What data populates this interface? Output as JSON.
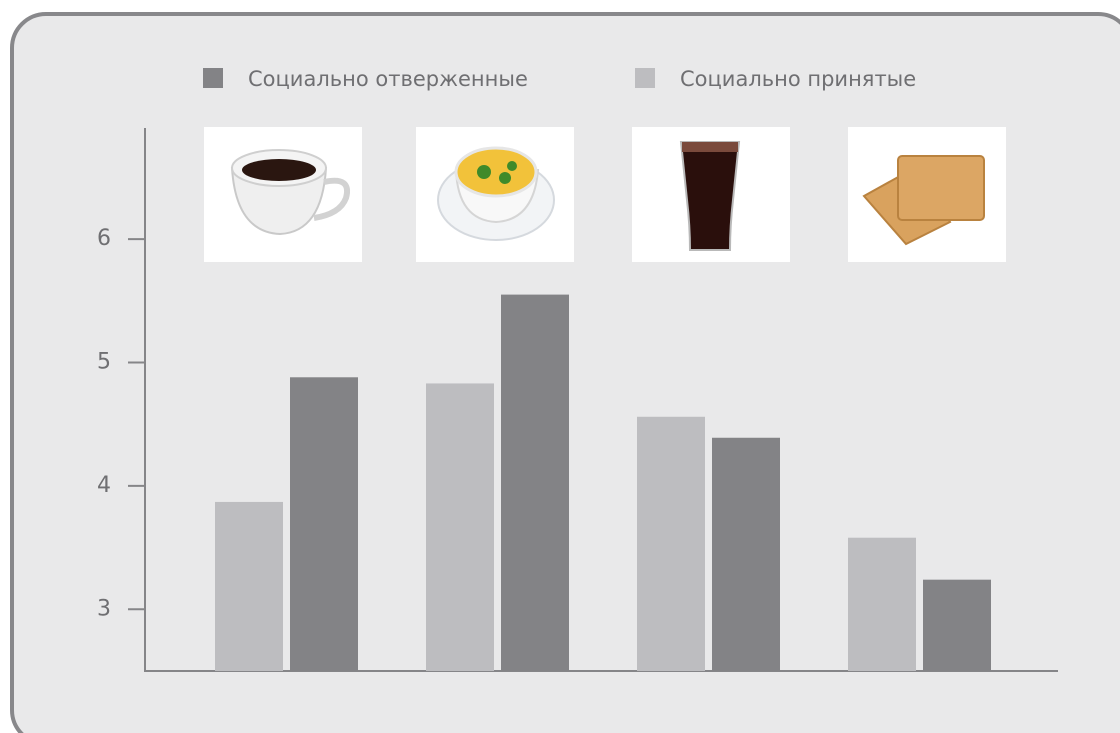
{
  "chart_data": {
    "type": "bar",
    "categories": [
      null,
      null,
      null,
      null
    ],
    "series": [
      {
        "name": "Социально отверженные",
        "color": "#838386",
        "values": [
          4.88,
          5.55,
          4.39,
          3.24
        ]
      },
      {
        "name": "Социально принятые",
        "color": "#bdbdc0",
        "values": [
          3.87,
          4.83,
          4.56,
          3.58
        ]
      }
    ],
    "ylim": [
      2.5,
      6.9
    ],
    "yticks": [
      3,
      4,
      5,
      6
    ],
    "grid": false
  }
}
